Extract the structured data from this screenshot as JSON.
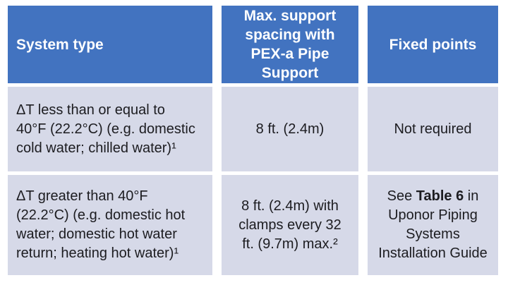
{
  "table": {
    "colors": {
      "header_bg": "#4273C0",
      "row_bg": "#D6D9E8",
      "header_text": "#FFFFFF",
      "body_text": "#1C1C20"
    },
    "header": {
      "system_type": "System type",
      "support_spacing": "Max. support\nspacing with\nPEX-a Pipe\nSupport",
      "fixed_points": "Fixed points"
    },
    "rows": [
      {
        "system_type": "ΔT less than or equal to\n40°F (22.2°C) (e.g. domestic\ncold water; chilled water)¹",
        "support_spacing": "8 ft. (2.4m)",
        "fixed_points": {
          "prefix": "Not required",
          "bold": "",
          "suffix": ""
        }
      },
      {
        "system_type": "ΔT greater than 40°F\n(22.2°C) (e.g. domestic hot\nwater; domestic hot water\nreturn; heating hot water)¹",
        "support_spacing": "8 ft. (2.4m) with\nclamps every 32\nft. (9.7m) max.²",
        "fixed_points": {
          "prefix": "See ",
          "bold": "Table 6",
          "suffix": " in\nUponor Piping\nSystems\nInstallation Guide"
        }
      }
    ]
  }
}
